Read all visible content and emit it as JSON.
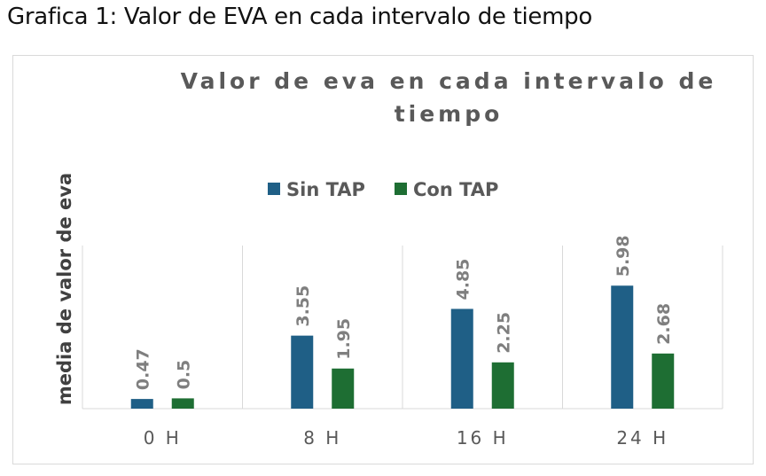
{
  "caption": "Grafica 1: Valor de EVA en cada intervalo de tiempo",
  "chart_data": {
    "type": "bar",
    "title": "Valor de eva en cada intervalo de tiempo",
    "title_lines": [
      "Valor de eva en cada intervalo de",
      "tiempo"
    ],
    "ylabel": "media de valor de eva",
    "xlabel": "",
    "categories": [
      "0 H",
      "8 H",
      "16 H",
      "24 H"
    ],
    "series": [
      {
        "name": "Sin TAP",
        "values": [
          0.47,
          3.55,
          4.85,
          5.98
        ],
        "labels": [
          "0.47",
          "3.55",
          "4.85",
          "5.98"
        ],
        "color": "#1f5f86"
      },
      {
        "name": "Con TAP",
        "values": [
          0.5,
          1.95,
          2.25,
          2.68
        ],
        "labels": [
          "0.5",
          "1.95",
          "2.25",
          "2.68"
        ],
        "color": "#1e6e33"
      }
    ],
    "ylim": [
      0,
      8
    ],
    "grid": "vertical category separators",
    "legend": "top-center",
    "axis_line_color": "#d9d9d9"
  }
}
